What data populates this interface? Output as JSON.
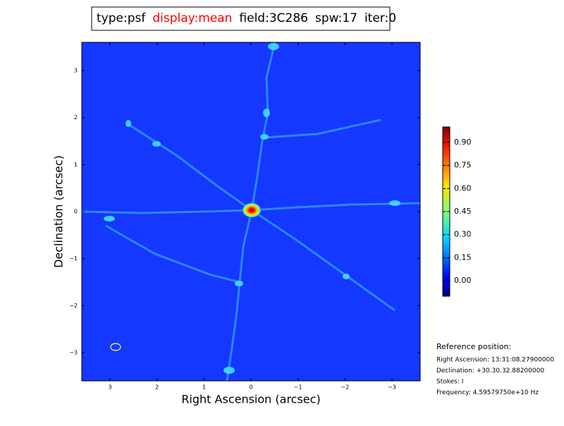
{
  "chart_data": {
    "type": "image",
    "title_parts": [
      {
        "text": "type:psf",
        "color": "#000000"
      },
      {
        "text": "display:mean",
        "color": "#ff0000"
      },
      {
        "text": "field:3C286",
        "color": "#000000"
      },
      {
        "text": "spw:17",
        "color": "#000000"
      },
      {
        "text": "iter:0",
        "color": "#000000"
      }
    ],
    "xlabel": "Right Ascension (arcsec)",
    "ylabel": "Declination (arcsec)",
    "xlim": [
      3.6,
      -3.6
    ],
    "ylim": [
      -3.6,
      3.6
    ],
    "xticks": [
      3,
      2,
      1,
      0,
      {
        "value": -1,
        "label": "−1"
      },
      {
        "value": -2,
        "label": "−2"
      },
      {
        "value": -3,
        "label": "−3"
      }
    ],
    "yticks": [
      {
        "value": -3,
        "label": "−3"
      },
      {
        "value": -2,
        "label": "−2"
      },
      {
        "value": -1,
        "label": "−1"
      },
      0,
      1,
      2,
      3
    ],
    "colorbar": {
      "lim": [
        -0.1,
        1.0
      ],
      "ticks": [
        {
          "value": 0,
          "label": "0.00"
        },
        {
          "value": 0.15,
          "label": "0.15"
        },
        {
          "value": 0.3,
          "label": "0.30"
        },
        {
          "value": 0.45,
          "label": "0.45"
        },
        {
          "value": 0.6,
          "label": "0.60"
        },
        {
          "value": 0.75,
          "label": "0.75"
        },
        {
          "value": 0.9,
          "label": "0.90"
        }
      ]
    },
    "reference": {
      "heading": "Reference position:",
      "lines": [
        "Right Ascension: 13:31:08.27900000",
        "Declination: +30.30.32.88200000",
        "Stokes: I",
        "Frequency: 4.59579750e+10 Hz"
      ]
    }
  }
}
